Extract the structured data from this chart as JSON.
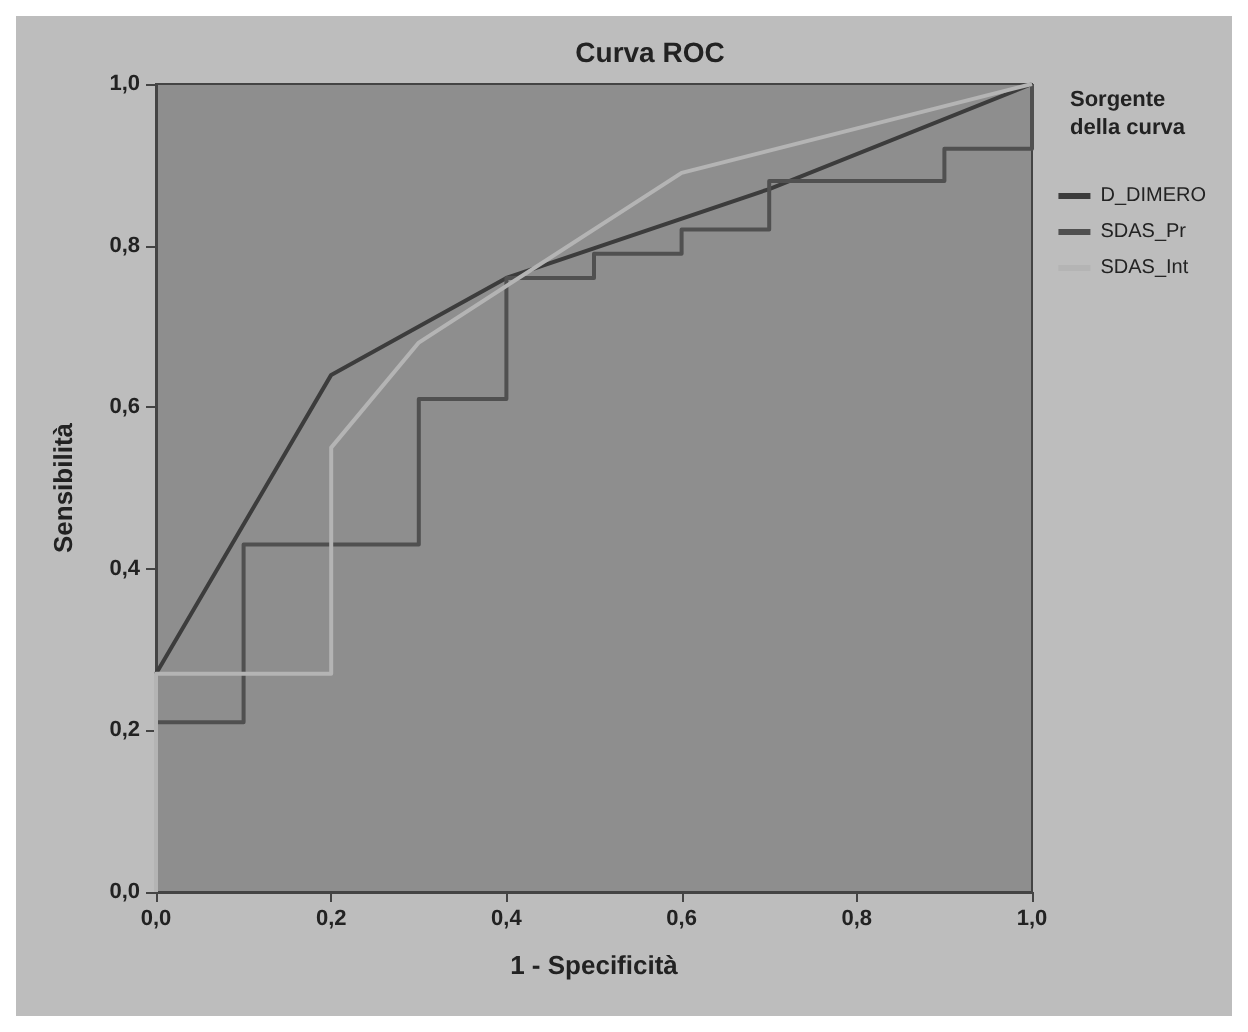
{
  "chart_data": {
    "type": "line",
    "title": "Curva ROC",
    "xlabel": "1 - Specificità",
    "ylabel": "Sensibilità",
    "legend_title": "Sorgente della curva",
    "xlim": [
      0,
      1
    ],
    "ylim": [
      0,
      1
    ],
    "xticks": [
      {
        "value": 0,
        "label": "0,0"
      },
      {
        "value": 0.2,
        "label": "0,2"
      },
      {
        "value": 0.4,
        "label": "0,4"
      },
      {
        "value": 0.6,
        "label": "0,6"
      },
      {
        "value": 0.8,
        "label": "0,8"
      },
      {
        "value": 1,
        "label": "1,0"
      }
    ],
    "yticks": [
      {
        "value": 0,
        "label": "0,0"
      },
      {
        "value": 0.2,
        "label": "0,2"
      },
      {
        "value": 0.4,
        "label": "0,4"
      },
      {
        "value": 0.6,
        "label": "0,6"
      },
      {
        "value": 0.8,
        "label": "0,8"
      },
      {
        "value": 1,
        "label": "1,0"
      }
    ],
    "grid": false,
    "legend": "right",
    "marker": "none",
    "series": [
      {
        "name": "D_DIMERO",
        "color": "#3c3c3c",
        "x": [
          0,
          0,
          0.2,
          0.4,
          0.7,
          1
        ],
        "values": [
          0,
          0.27,
          0.64,
          0.76,
          0.87,
          1
        ]
      },
      {
        "name": "SDAS_Pr",
        "color": "#505050",
        "x": [
          0,
          0,
          0.1,
          0.1,
          0.3,
          0.3,
          0.4,
          0.4,
          0.5,
          0.5,
          0.6,
          0.6,
          0.7,
          0.7,
          0.9,
          0.9,
          1,
          1
        ],
        "values": [
          0,
          0.21,
          0.21,
          0.43,
          0.43,
          0.61,
          0.61,
          0.76,
          0.76,
          0.79,
          0.79,
          0.82,
          0.82,
          0.88,
          0.88,
          0.92,
          0.92,
          1
        ]
      },
      {
        "name": "SDAS_Int",
        "color": "#b4b4b4",
        "x": [
          0,
          0,
          0.2,
          0.2,
          0.3,
          0.6,
          1
        ],
        "values": [
          0,
          0.27,
          0.27,
          0.55,
          0.68,
          0.89,
          1
        ]
      }
    ]
  }
}
